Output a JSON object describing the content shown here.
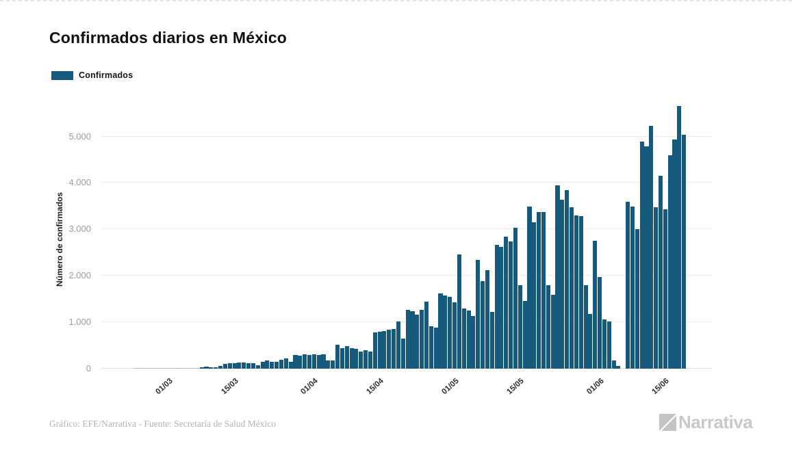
{
  "title": "Confirmados diarios en México",
  "legend": {
    "label": "Confirmados",
    "swatch_color": "#15597d"
  },
  "y_axis": {
    "title": "Número de confirmados",
    "tick_labels": [
      "0",
      "1.000",
      "2.000",
      "3.000",
      "4.000",
      "5.000"
    ],
    "tick_values": [
      0,
      1000,
      2000,
      3000,
      4000,
      5000
    ]
  },
  "x_axis": {
    "ticks": [
      {
        "label": "01/03",
        "index": 14
      },
      {
        "label": "15/03",
        "index": 28
      },
      {
        "label": "01/04",
        "index": 45
      },
      {
        "label": "15/04",
        "index": 59
      },
      {
        "label": "01/05",
        "index": 75
      },
      {
        "label": "15/05",
        "index": 89
      },
      {
        "label": "01/06",
        "index": 106
      },
      {
        "label": "15/06",
        "index": 120
      }
    ]
  },
  "footer": {
    "credit": "Gráfico: EFE/Narrativa - Fuente: Secretaría de Salud México",
    "logo_text": "Narrativa"
  },
  "colors": {
    "bar": "#15597d",
    "grid": "#ececec",
    "axis_text": "#9b9b9b",
    "logo": "#c9c9c9"
  },
  "chart_data": {
    "type": "bar",
    "title": "Confirmados diarios en México",
    "series_name": "Confirmados",
    "xlabel": "",
    "ylabel": "Número de confirmados",
    "ylim": [
      0,
      5800
    ],
    "grid": "horizontal",
    "legend_position": "top-left",
    "x": [
      "16/02",
      "17/02",
      "18/02",
      "19/02",
      "20/02",
      "21/02",
      "22/02",
      "23/02",
      "24/02",
      "25/02",
      "26/02",
      "27/02",
      "28/02",
      "29/02",
      "01/03",
      "02/03",
      "03/03",
      "04/03",
      "05/03",
      "06/03",
      "07/03",
      "08/03",
      "09/03",
      "10/03",
      "11/03",
      "12/03",
      "13/03",
      "14/03",
      "15/03",
      "16/03",
      "17/03",
      "18/03",
      "19/03",
      "20/03",
      "21/03",
      "22/03",
      "23/03",
      "24/03",
      "25/03",
      "26/03",
      "27/03",
      "28/03",
      "29/03",
      "30/03",
      "31/03",
      "01/04",
      "02/04",
      "03/04",
      "04/04",
      "05/04",
      "06/04",
      "07/04",
      "08/04",
      "09/04",
      "10/04",
      "11/04",
      "12/04",
      "13/04",
      "14/04",
      "15/04",
      "16/04",
      "17/04",
      "18/04",
      "19/04",
      "20/04",
      "21/04",
      "22/04",
      "23/04",
      "24/04",
      "25/04",
      "26/04",
      "27/04",
      "28/04",
      "29/04",
      "30/04",
      "01/05",
      "02/05",
      "03/05",
      "04/05",
      "05/05",
      "06/05",
      "07/05",
      "08/05",
      "09/05",
      "10/05",
      "11/05",
      "12/05",
      "13/05",
      "14/05",
      "15/05",
      "16/05",
      "17/05",
      "18/05",
      "19/05",
      "20/05",
      "21/05",
      "22/05",
      "23/05",
      "24/05",
      "25/05",
      "26/05",
      "27/05",
      "28/05",
      "29/05",
      "30/05",
      "31/05",
      "01/06",
      "02/06",
      "03/06",
      "04/06",
      "05/06",
      "06/06",
      "07/06",
      "08/06",
      "09/06",
      "10/06",
      "11/06",
      "12/06",
      "13/06",
      "14/06",
      "15/06",
      "16/06",
      "17/06",
      "18/06",
      "19/06"
    ],
    "values": [
      0,
      0,
      0,
      0,
      0,
      0,
      0,
      1,
      1,
      2,
      2,
      3,
      4,
      4,
      5,
      5,
      6,
      11,
      15,
      15,
      15,
      25,
      50,
      35,
      35,
      63,
      103,
      113,
      122,
      133,
      133,
      118,
      118,
      78,
      152,
      177,
      152,
      152,
      187,
      226,
      152,
      300,
      276,
      314,
      300,
      305,
      290,
      311,
      177,
      175,
      520,
      447,
      482,
      447,
      428,
      369,
      398,
      369,
      777,
      801,
      816,
      841,
      856,
      1022,
      650,
      1273,
      1234,
      1160,
      1273,
      1446,
      915,
      880,
      1618,
      1578,
      1553,
      1431,
      2453,
      1293,
      1258,
      1136,
      2341,
      1883,
      2119,
      1224,
      2670,
      2625,
      2845,
      2735,
      3030,
      1800,
      1456,
      3486,
      3151,
      3380,
      3377,
      1800,
      1588,
      3948,
      3643,
      3850,
      3470,
      3300,
      3290,
      1800,
      1185,
      2760,
      1980,
      1062,
      1022,
      170,
      54,
      0,
      3593,
      3484,
      2999,
      4883,
      4790,
      5222,
      3470,
      4147,
      3427,
      4599,
      4930,
      5662,
      5030
    ]
  }
}
